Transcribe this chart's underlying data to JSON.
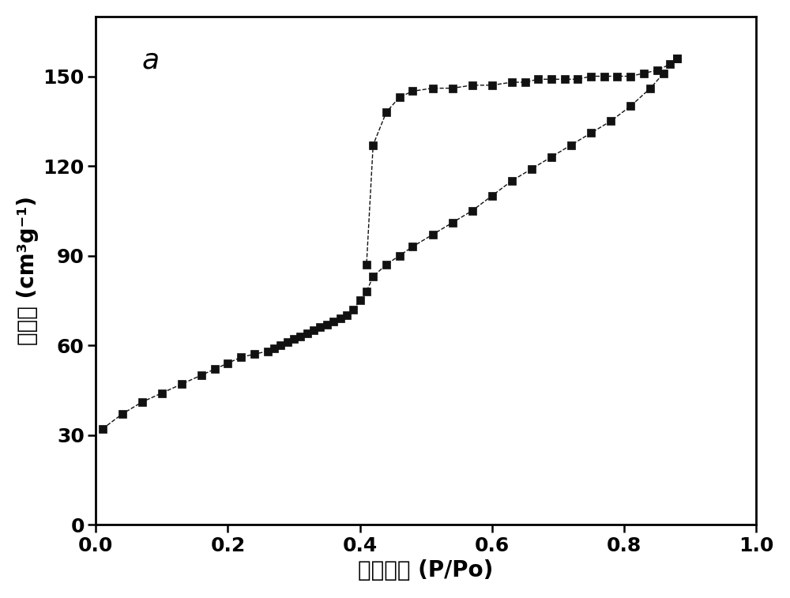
{
  "adsorption_x": [
    0.01,
    0.04,
    0.07,
    0.1,
    0.13,
    0.16,
    0.18,
    0.2,
    0.22,
    0.24,
    0.26,
    0.27,
    0.28,
    0.29,
    0.3,
    0.31,
    0.32,
    0.33,
    0.34,
    0.35,
    0.36,
    0.37,
    0.38,
    0.39,
    0.4,
    0.41,
    0.42,
    0.44,
    0.46,
    0.48,
    0.51,
    0.54,
    0.57,
    0.6,
    0.63,
    0.66,
    0.69,
    0.72,
    0.75,
    0.78,
    0.81,
    0.84,
    0.86,
    0.88
  ],
  "adsorption_y": [
    32,
    37,
    41,
    44,
    47,
    50,
    52,
    54,
    56,
    57,
    58,
    59,
    60,
    61,
    62,
    63,
    64,
    65,
    66,
    67,
    68,
    69,
    70,
    72,
    75,
    78,
    83,
    87,
    90,
    93,
    97,
    101,
    105,
    110,
    115,
    119,
    123,
    127,
    131,
    135,
    140,
    146,
    151,
    156
  ],
  "desorption_x": [
    0.88,
    0.87,
    0.85,
    0.83,
    0.81,
    0.79,
    0.77,
    0.75,
    0.73,
    0.71,
    0.69,
    0.67,
    0.65,
    0.63,
    0.6,
    0.57,
    0.54,
    0.51,
    0.48,
    0.46,
    0.44,
    0.42,
    0.41
  ],
  "desorption_y": [
    156,
    154,
    152,
    151,
    150,
    150,
    150,
    150,
    149,
    149,
    149,
    149,
    148,
    148,
    147,
    147,
    146,
    146,
    145,
    143,
    138,
    127,
    87
  ],
  "xlabel": "相对压力 (P/Po)",
  "ylabel": "吸附量 (cm³g⁻¹)",
  "label_a": "a",
  "xlim": [
    0.0,
    1.0
  ],
  "ylim": [
    0,
    170
  ],
  "xticks": [
    0.0,
    0.2,
    0.4,
    0.6,
    0.8,
    1.0
  ],
  "yticks": [
    0,
    30,
    60,
    90,
    120,
    150
  ],
  "marker_color": "#111111",
  "background_color": "#ffffff",
  "axis_fontsize": 20,
  "tick_fontsize": 18,
  "label_a_fontsize": 26,
  "marker_size": 7,
  "linewidth": 1.0
}
